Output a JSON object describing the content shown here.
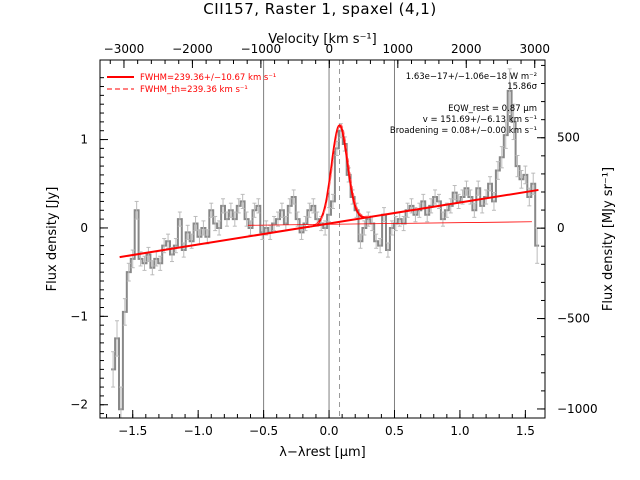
{
  "chart_data": {
    "type": "line",
    "title": "CII157, Raster 1, spaxel (4,1)",
    "xlabel": "λ−λrest [μm]",
    "ylabel": "Flux density [Jy]",
    "top_xlabel": "Velocity [km s⁻¹]",
    "right_ylabel": "Flux density [MJy sr⁻¹]",
    "xlim": [
      -1.75,
      1.65
    ],
    "ylim": [
      -2.15,
      1.9
    ],
    "top_xlim": [
      -3350,
      3150
    ],
    "right_ylim": [
      -1050,
      930
    ],
    "x_ticks": [
      -1.5,
      -1.0,
      -0.5,
      0.0,
      0.5,
      1.0,
      1.5
    ],
    "x_tick_labels": [
      "−1.5",
      "−1.0",
      "−0.5",
      "0.0",
      "0.5",
      "1.0",
      "1.5"
    ],
    "y_ticks": [
      -2,
      -1,
      0,
      1
    ],
    "y_tick_labels": [
      "−2",
      "−1",
      "0",
      "1"
    ],
    "top_ticks": [
      -3000,
      -2000,
      -1000,
      0,
      1000,
      2000,
      3000
    ],
    "top_tick_labels": [
      "−3000",
      "−2000",
      "−1000",
      "0",
      "1000",
      "2000",
      "3000"
    ],
    "right_ticks": [
      -1000,
      -500,
      0,
      500
    ],
    "right_tick_labels": [
      "−1000",
      "−500",
      "0",
      "500"
    ],
    "vlines_solid": [
      -0.5,
      0.0,
      0.5
    ],
    "vline_dashed": 0.08,
    "fit_line": {
      "x": [
        -1.6,
        1.6
      ],
      "y": [
        -0.33,
        0.43
      ]
    },
    "gaussian": {
      "center": 0.08,
      "peak": 1.16,
      "sigma": 0.06
    },
    "spectrum": {
      "x": [
        -1.65,
        -1.62,
        -1.59,
        -1.56,
        -1.53,
        -1.5,
        -1.47,
        -1.44,
        -1.41,
        -1.38,
        -1.35,
        -1.32,
        -1.29,
        -1.26,
        -1.23,
        -1.2,
        -1.17,
        -1.14,
        -1.11,
        -1.08,
        -1.05,
        -1.02,
        -0.99,
        -0.96,
        -0.93,
        -0.9,
        -0.87,
        -0.84,
        -0.81,
        -0.78,
        -0.75,
        -0.72,
        -0.69,
        -0.66,
        -0.63,
        -0.6,
        -0.57,
        -0.54,
        -0.51,
        -0.48,
        -0.45,
        -0.42,
        -0.39,
        -0.36,
        -0.33,
        -0.3,
        -0.27,
        -0.24,
        -0.21,
        -0.18,
        -0.15,
        -0.12,
        -0.09,
        -0.06,
        -0.03,
        0.0,
        0.03,
        0.06,
        0.09,
        0.12,
        0.15,
        0.18,
        0.21,
        0.24,
        0.27,
        0.3,
        0.33,
        0.36,
        0.39,
        0.42,
        0.45,
        0.48,
        0.51,
        0.54,
        0.57,
        0.6,
        0.63,
        0.66,
        0.69,
        0.72,
        0.75,
        0.78,
        0.81,
        0.84,
        0.87,
        0.9,
        0.93,
        0.96,
        0.99,
        1.02,
        1.05,
        1.08,
        1.11,
        1.14,
        1.17,
        1.2,
        1.23,
        1.26,
        1.29,
        1.32,
        1.35,
        1.38,
        1.41,
        1.44,
        1.47,
        1.5,
        1.53,
        1.56,
        1.59
      ],
      "y": [
        -1.6,
        -1.25,
        -2.05,
        -0.95,
        -0.5,
        -0.35,
        0.2,
        -0.35,
        -0.4,
        -0.3,
        -0.45,
        -0.35,
        -0.4,
        -0.2,
        -0.15,
        -0.3,
        -0.2,
        0.1,
        -0.25,
        -0.05,
        -0.15,
        0.05,
        -0.1,
        0.0,
        -0.1,
        0.2,
        0.05,
        0.0,
        0.25,
        0.1,
        0.2,
        0.1,
        0.25,
        0.3,
        0.1,
        0.0,
        0.2,
        0.25,
        -0.05,
        0.0,
        -0.05,
        0.05,
        0.1,
        0.2,
        0.05,
        0.25,
        0.35,
        0.1,
        -0.05,
        0.05,
        0.2,
        0.25,
        0.1,
        0.05,
        0.0,
        0.15,
        0.3,
        0.9,
        1.1,
        0.95,
        0.6,
        0.35,
        0.2,
        -0.15,
        0.0,
        0.1,
        0.05,
        -0.15,
        -0.2,
        0.15,
        -0.25,
        0.0,
        0.05,
        0.1,
        0.05,
        0.2,
        0.25,
        0.15,
        0.2,
        0.3,
        0.15,
        0.25,
        0.35,
        0.3,
        0.1,
        0.2,
        0.25,
        0.4,
        0.3,
        0.35,
        0.45,
        0.35,
        0.2,
        0.45,
        0.25,
        0.35,
        0.5,
        0.3,
        0.65,
        0.8,
        1.05,
        1.55,
        1.2,
        0.7,
        0.55,
        0.6,
        0.35,
        0.5,
        -0.2
      ],
      "err": [
        0.2,
        0.2,
        0.25,
        0.15,
        0.1,
        0.1,
        0.1,
        0.08,
        0.08,
        0.08,
        0.08,
        0.08,
        0.08,
        0.08,
        0.08,
        0.08,
        0.08,
        0.08,
        0.08,
        0.08,
        0.08,
        0.08,
        0.08,
        0.08,
        0.08,
        0.08,
        0.08,
        0.08,
        0.08,
        0.08,
        0.08,
        0.08,
        0.08,
        0.08,
        0.08,
        0.08,
        0.08,
        0.08,
        0.08,
        0.08,
        0.08,
        0.08,
        0.08,
        0.08,
        0.08,
        0.08,
        0.08,
        0.08,
        0.08,
        0.08,
        0.08,
        0.08,
        0.08,
        0.08,
        0.08,
        0.08,
        0.08,
        0.08,
        0.08,
        0.08,
        0.08,
        0.08,
        0.08,
        0.08,
        0.08,
        0.08,
        0.08,
        0.08,
        0.08,
        0.08,
        0.08,
        0.08,
        0.08,
        0.08,
        0.08,
        0.08,
        0.08,
        0.08,
        0.08,
        0.08,
        0.08,
        0.08,
        0.08,
        0.08,
        0.08,
        0.08,
        0.08,
        0.08,
        0.08,
        0.08,
        0.08,
        0.08,
        0.08,
        0.08,
        0.08,
        0.08,
        0.08,
        0.1,
        0.1,
        0.12,
        0.15,
        0.25,
        0.2,
        0.12,
        0.1,
        0.1,
        0.1,
        0.12,
        0.2
      ]
    },
    "legend": [
      {
        "label": "FWHM=239.36+/−10.67 km s⁻¹",
        "style": "solid"
      },
      {
        "label": "FWHM_th=239.36 km s⁻¹",
        "style": "dashed"
      }
    ],
    "annotations": [
      "1.63e−17+/−1.06e−18 W m⁻²",
      "15.86σ",
      "EQW_rest = 0.87 μm",
      "v = 151.69+/−6.13 km s⁻¹",
      "Broadening = 0.08+/−0.00 km s⁻¹"
    ],
    "legend_placement": "top-left",
    "annotation_placement": "top-right",
    "colors": {
      "spectrum": "#888888",
      "fit": "#ff0000",
      "frame": "#000000",
      "vlines": "#7f7f7f"
    },
    "grid": false
  }
}
